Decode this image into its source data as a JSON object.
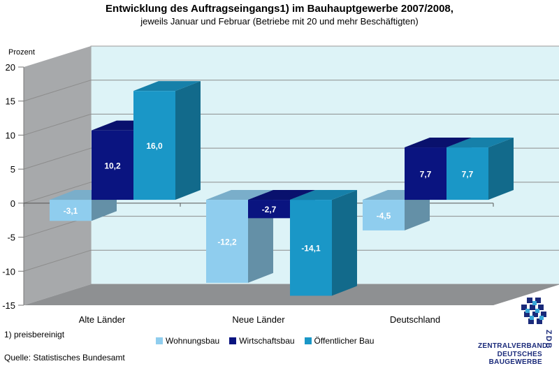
{
  "chart_data": {
    "type": "bar",
    "title": "Entwicklung des Auftragseingangs1) im Bauhauptgewerbe 2007/2008,",
    "subtitle": "jeweils Januar und Februar (Betriebe mit 20 und mehr Beschäftigten)",
    "ylabel": "Prozent",
    "ylim": [
      -15,
      20
    ],
    "yticks": [
      20,
      15,
      10,
      5,
      0,
      -5,
      -10,
      -15
    ],
    "grid": true,
    "legend_position": "bottom",
    "categories": [
      "Alte Länder",
      "Neue Länder",
      "Deutschland"
    ],
    "series": [
      {
        "name": "Wohnungsbau",
        "values": [
          -3.1,
          -12.2,
          -4.5
        ],
        "labels": [
          "-3,1",
          "-12,2",
          "-4,5"
        ],
        "color": "#8fcdee"
      },
      {
        "name": "Wirtschaftsbau",
        "values": [
          10.2,
          -2.7,
          7.7
        ],
        "labels": [
          "10,2",
          "-2,7",
          "7,7"
        ],
        "color": "#0a1480"
      },
      {
        "name": "Öffentlicher Bau",
        "values": [
          16.0,
          -14.1,
          7.7
        ],
        "labels": [
          "16,0",
          "-14,1",
          "7,7"
        ],
        "color": "#1a97c7"
      }
    ]
  },
  "footnote": "1) preisbereinigt",
  "source": "Quelle: Statistisches Bundesamt",
  "logo": {
    "line1": "ZENTRALVERBAND",
    "line2": "DEUTSCHES",
    "line3": "BAUGEWERBE",
    "side": "ZDB"
  },
  "colors": {
    "wall": "#ddf3f7",
    "side_wall": "#a7a9ab",
    "floor": "#8e9092"
  }
}
